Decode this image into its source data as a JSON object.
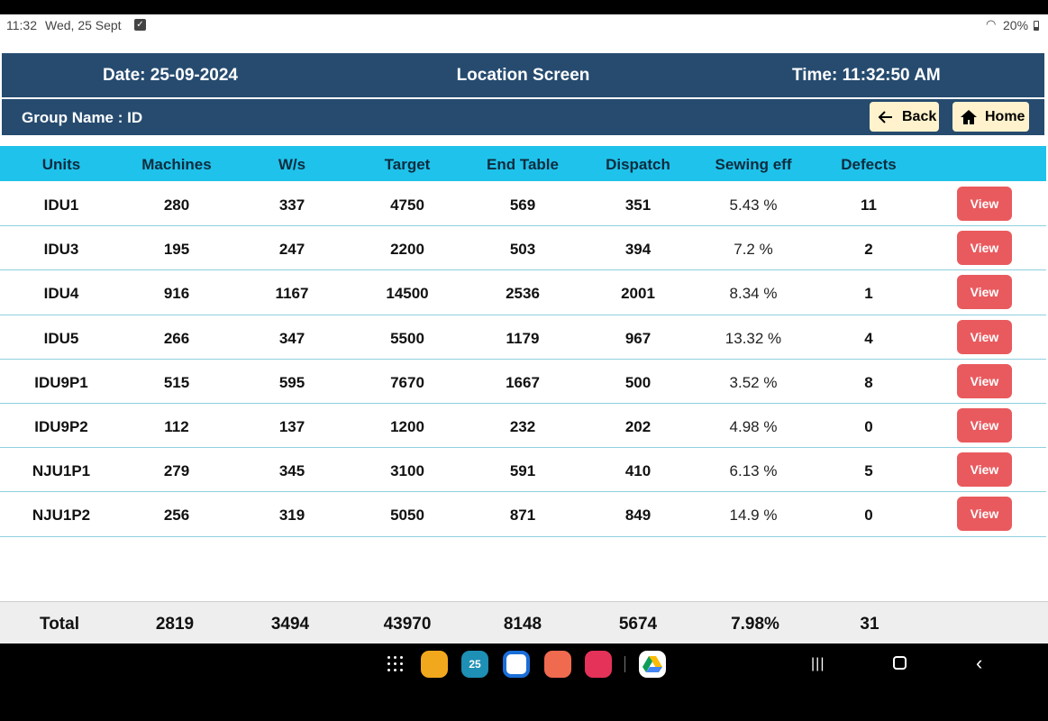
{
  "status_bar": {
    "time": "11:32",
    "date": "Wed, 25 Sept",
    "battery": "20%"
  },
  "header": {
    "date": "Date: 25-09-2024",
    "title": "Location Screen",
    "time": "Time: 11:32:50 AM",
    "group_name": "Group Name : ID",
    "back_label": "Back",
    "home_label": "Home"
  },
  "table": {
    "columns": [
      "Units",
      "Machines",
      "W/s",
      "Target",
      "End Table",
      "Dispatch",
      "Sewing eff",
      "Defects"
    ],
    "view_label": "View",
    "rows": [
      {
        "unit": "IDU1",
        "machines": "280",
        "ws": "337",
        "target": "4750",
        "end_table": "569",
        "dispatch": "351",
        "sewing_eff": "5.43 %",
        "defects": "11"
      },
      {
        "unit": "IDU3",
        "machines": "195",
        "ws": "247",
        "target": "2200",
        "end_table": "503",
        "dispatch": "394",
        "sewing_eff": "7.2 %",
        "defects": "2"
      },
      {
        "unit": "IDU4",
        "machines": "916",
        "ws": "1167",
        "target": "14500",
        "end_table": "2536",
        "dispatch": "2001",
        "sewing_eff": "8.34 %",
        "defects": "1"
      },
      {
        "unit": "IDU5",
        "machines": "266",
        "ws": "347",
        "target": "5500",
        "end_table": "1179",
        "dispatch": "967",
        "sewing_eff": "13.32 %",
        "defects": "4"
      },
      {
        "unit": "IDU9P1",
        "machines": "515",
        "ws": "595",
        "target": "7670",
        "end_table": "1667",
        "dispatch": "500",
        "sewing_eff": "3.52 %",
        "defects": "8"
      },
      {
        "unit": "IDU9P2",
        "machines": "112",
        "ws": "137",
        "target": "1200",
        "end_table": "232",
        "dispatch": "202",
        "sewing_eff": "4.98 %",
        "defects": "0"
      },
      {
        "unit": "NJU1P1",
        "machines": "279",
        "ws": "345",
        "target": "3100",
        "end_table": "591",
        "dispatch": "410",
        "sewing_eff": "6.13 %",
        "defects": "5"
      },
      {
        "unit": "NJU1P2",
        "machines": "256",
        "ws": "319",
        "target": "5050",
        "end_table": "871",
        "dispatch": "849",
        "sewing_eff": "14.9 %",
        "defects": "0"
      }
    ],
    "total": {
      "label": "Total",
      "machines": "2819",
      "ws": "3494",
      "target": "43970",
      "end_table": "8148",
      "dispatch": "5674",
      "sewing_eff": "7.98%",
      "defects": "31"
    }
  },
  "nav_bar": {
    "apps": [
      "my-files-icon",
      "calendar-icon",
      "messages-icon",
      "contacts-icon",
      "screen-recorder-icon",
      "google-drive-icon"
    ],
    "calendar_day": "25",
    "colors": {
      "header": "#264B6F",
      "table_header": "#1FC2EA",
      "view_button": "#E95A5E",
      "button_bg": "#FFF2CC"
    }
  }
}
